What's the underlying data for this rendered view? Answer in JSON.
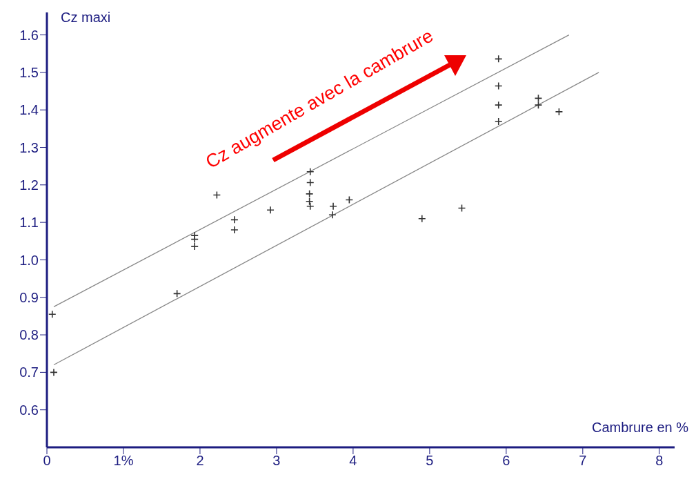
{
  "chart_data": {
    "type": "scatter",
    "xlabel": "Cambrure en %",
    "ylabel": "Cz maxi",
    "annotations": [
      "Cz augmente avec la cambrure"
    ],
    "xlim": [
      0,
      8.2
    ],
    "ylim": [
      0.5,
      1.66
    ],
    "xticks": [
      0,
      {
        "value": 1,
        "label": "1%"
      },
      2,
      3,
      4,
      5,
      6,
      7,
      8
    ],
    "yticks": [
      0.6,
      0.7,
      0.8,
      0.9,
      {
        "value": 1,
        "label": "1.0"
      },
      1.1,
      1.2,
      1.3,
      1.4,
      1.5,
      1.6
    ],
    "grid": false,
    "legend": false,
    "series": [
      {
        "color": "#333333",
        "marker": "cross",
        "x": [
          0.07,
          0.09,
          1.7,
          1.93,
          1.93,
          1.93,
          2.22,
          2.45,
          2.45,
          2.92,
          3.44,
          3.44,
          3.43,
          3.43,
          3.44,
          3.74,
          3.73,
          3.95,
          4.9,
          5.42,
          5.9,
          5.9,
          5.9,
          5.9,
          6.42,
          6.42,
          6.69
        ],
        "values": [
          0.855,
          0.7,
          0.91,
          1.065,
          1.055,
          1.036,
          1.173,
          1.107,
          1.08,
          1.133,
          1.235,
          1.206,
          1.176,
          1.156,
          1.143,
          1.143,
          1.12,
          1.16,
          1.11,
          1.138,
          1.536,
          1.464,
          1.413,
          1.369,
          1.431,
          1.413,
          1.395
        ]
      },
      {
        "type": "line",
        "color": "#888888",
        "marker": "none",
        "x": [
          0.09,
          6.82
        ],
        "values": [
          0.875,
          1.6
        ]
      },
      {
        "type": "line",
        "color": "#888888",
        "marker": "none",
        "x": [
          0.09,
          7.21
        ],
        "values": [
          0.72,
          1.5
        ]
      }
    ]
  }
}
